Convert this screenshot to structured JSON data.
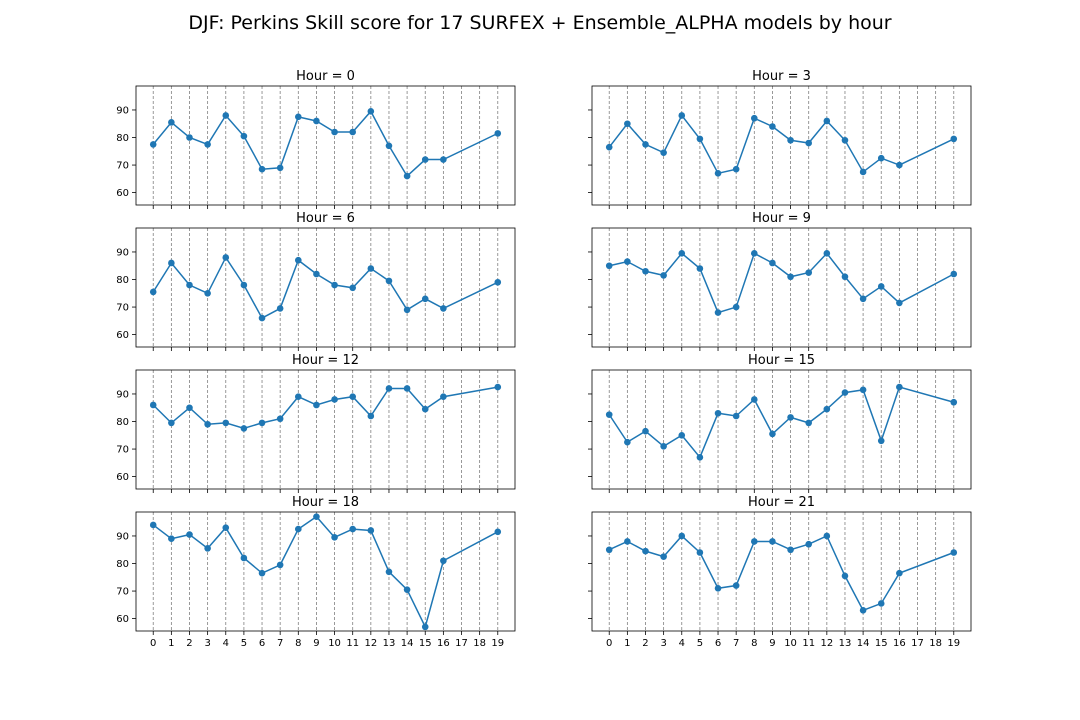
{
  "title": "DJF: Perkins Skill score for 17 SURFEX + Ensemble_ALPHA models by hour",
  "chart_data": {
    "type": "line",
    "grid_x": true,
    "grid_y": false,
    "x_ticks": [
      0,
      1,
      2,
      3,
      4,
      5,
      6,
      7,
      8,
      9,
      10,
      11,
      12,
      13,
      14,
      15,
      16,
      17,
      18,
      19
    ],
    "x_tick_labels": [
      "0",
      "1",
      "2",
      "3",
      "4",
      "5",
      "6",
      "7",
      "8",
      "9",
      "10",
      "11",
      "12",
      "13",
      "14",
      "15",
      "16",
      "17",
      "18",
      "19"
    ],
    "y_ticks": [
      60,
      70,
      80,
      90
    ],
    "y_tick_labels": [
      "60",
      "70",
      "80",
      "90"
    ],
    "xlim": [
      -0.95,
      19.95
    ],
    "ylim": [
      55.5,
      98.7
    ],
    "marker_color": "#1f77b4",
    "panels": [
      {
        "title": "Hour = 0",
        "x": [
          0,
          1,
          2,
          3,
          4,
          5,
          6,
          7,
          8,
          9,
          10,
          11,
          12,
          13,
          14,
          15,
          16,
          19
        ],
        "y": [
          77.5,
          85.5,
          80,
          77.5,
          88,
          80.5,
          68.5,
          69,
          87.5,
          86,
          82,
          82,
          89.5,
          77,
          66,
          72,
          72,
          81.5
        ]
      },
      {
        "title": "Hour = 3",
        "x": [
          0,
          1,
          2,
          3,
          4,
          5,
          6,
          7,
          8,
          9,
          10,
          11,
          12,
          13,
          14,
          15,
          16,
          19
        ],
        "y": [
          76.5,
          85,
          77.5,
          74.5,
          88,
          79.5,
          67,
          68.5,
          87,
          84,
          79,
          78,
          86,
          79,
          67.5,
          72.5,
          70,
          79.5
        ]
      },
      {
        "title": "Hour = 6",
        "x": [
          0,
          1,
          2,
          3,
          4,
          5,
          6,
          7,
          8,
          9,
          10,
          11,
          12,
          13,
          14,
          15,
          16,
          19
        ],
        "y": [
          75.5,
          86,
          78,
          75,
          88,
          78,
          66,
          69.5,
          87,
          82,
          78,
          77,
          84,
          79.5,
          69,
          73,
          69.5,
          79
        ]
      },
      {
        "title": "Hour = 9",
        "x": [
          0,
          1,
          2,
          3,
          4,
          5,
          6,
          7,
          8,
          9,
          10,
          11,
          12,
          13,
          14,
          15,
          16,
          19
        ],
        "y": [
          85,
          86.5,
          83,
          81.5,
          89.5,
          84,
          68,
          70,
          89.5,
          86,
          81,
          82.5,
          89.5,
          81,
          73,
          77.5,
          71.5,
          82
        ]
      },
      {
        "title": "Hour = 12",
        "x": [
          0,
          1,
          2,
          3,
          4,
          5,
          6,
          7,
          8,
          9,
          10,
          11,
          12,
          13,
          14,
          15,
          16,
          19
        ],
        "y": [
          86,
          79.5,
          85,
          79,
          79.5,
          77.5,
          79.5,
          81,
          89,
          86,
          88,
          89,
          82,
          92,
          92,
          84.5,
          89,
          92.5
        ]
      },
      {
        "title": "Hour = 15",
        "x": [
          0,
          1,
          2,
          3,
          4,
          5,
          6,
          7,
          8,
          9,
          10,
          11,
          12,
          13,
          14,
          15,
          16,
          19
        ],
        "y": [
          82.5,
          72.5,
          76.5,
          71,
          75,
          67,
          83,
          82,
          88,
          75.5,
          81.5,
          79.5,
          84.5,
          90.5,
          91.5,
          73,
          92.5,
          87
        ]
      },
      {
        "title": "Hour = 18",
        "x": [
          0,
          1,
          2,
          3,
          4,
          5,
          6,
          7,
          8,
          9,
          10,
          11,
          12,
          13,
          14,
          15,
          16,
          19
        ],
        "y": [
          94,
          89,
          90.5,
          85.5,
          93,
          82,
          76.5,
          79.5,
          92.5,
          97,
          89.5,
          92.5,
          92,
          77,
          70.5,
          57,
          81,
          91.5
        ]
      },
      {
        "title": "Hour = 21",
        "x": [
          0,
          1,
          2,
          3,
          4,
          5,
          6,
          7,
          8,
          9,
          10,
          11,
          12,
          13,
          14,
          15,
          16,
          19
        ],
        "y": [
          85,
          88,
          84.5,
          82.5,
          90,
          84,
          71,
          72,
          88,
          88,
          85,
          87,
          90,
          75.5,
          63,
          65.5,
          76.5,
          84
        ]
      }
    ]
  }
}
